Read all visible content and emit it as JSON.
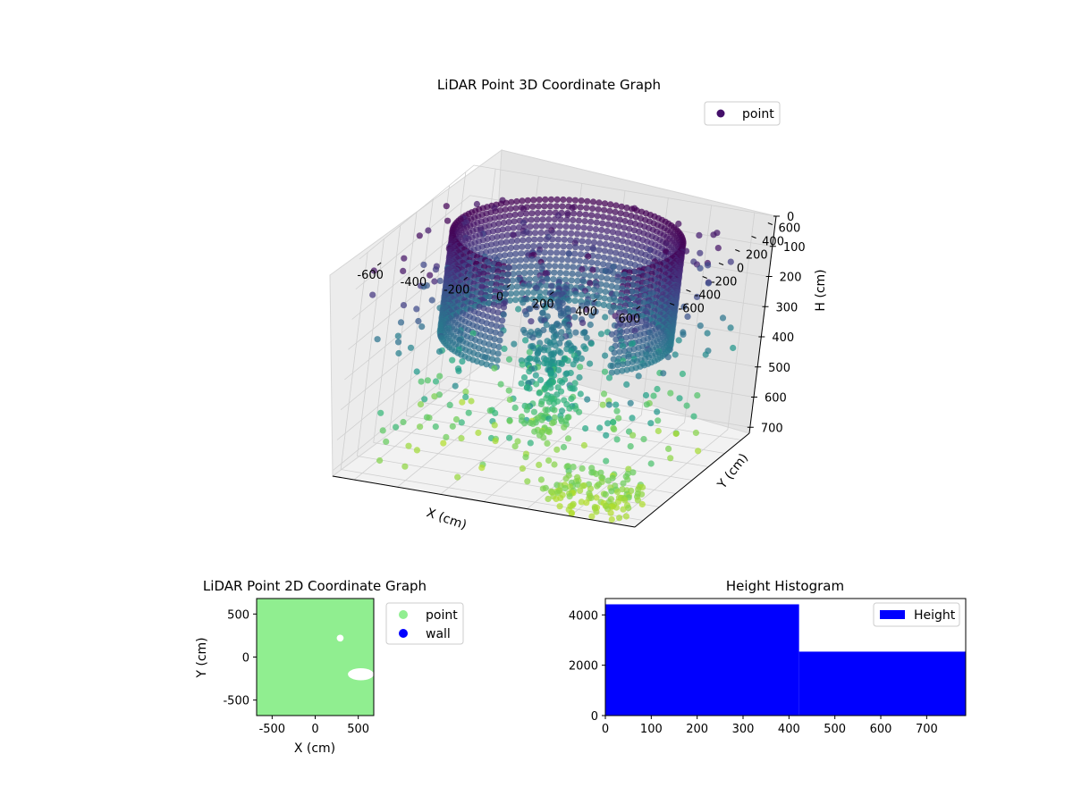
{
  "chart_data": [
    {
      "type": "scatter3d",
      "title": "LiDAR Point 3D Coordinate Graph",
      "xlabel": "X (cm)",
      "ylabel": "Y (cm)",
      "zlabel": "H (cm)",
      "x_ticks": [
        "-600",
        "-400",
        "-200",
        "0",
        "200",
        "400",
        "600"
      ],
      "y_ticks": [
        "-600",
        "-400",
        "-200",
        "0",
        "200",
        "400",
        "600"
      ],
      "z_ticks": [
        "0",
        "100",
        "200",
        "300",
        "400",
        "500",
        "600",
        "700"
      ],
      "xlim": [
        -700,
        700
      ],
      "ylim": [
        -700,
        700
      ],
      "zlim": [
        0,
        720
      ],
      "z_inverted": true,
      "colormap": "viridis",
      "legend": {
        "entries": [
          {
            "label": "point",
            "color": "#440f6a"
          }
        ],
        "position": "top-right"
      },
      "series": [
        {
          "name": "point",
          "points_description": "ring of points at radius ~500 cm near H 0-300, central column and scattered points down to H ~700"
        }
      ],
      "ring": {
        "radius": 500,
        "h_min": 0,
        "h_max": 330,
        "arc_start_deg": -40,
        "arc_end_deg": 260
      },
      "grid": true
    },
    {
      "type": "scatter",
      "title": "LiDAR Point 2D Coordinate Graph",
      "xlabel": "X (cm)",
      "ylabel": "Y (cm)",
      "x_ticks": [
        "-500",
        "0",
        "500"
      ],
      "y_ticks": [
        "-500",
        "0",
        "500"
      ],
      "xlim": [
        -680,
        680
      ],
      "ylim": [
        -680,
        680
      ],
      "legend": {
        "entries": [
          {
            "label": "point",
            "color": "#90ee90"
          },
          {
            "label": "wall",
            "color": "#0000ff"
          }
        ],
        "position": "outside-right"
      },
      "fill_color": "#90ee90",
      "gaps": [
        {
          "x": [
            250,
            330
          ],
          "y": [
            180,
            260
          ]
        },
        {
          "x": [
            380,
            680
          ],
          "y": [
            -270,
            -130
          ]
        }
      ]
    },
    {
      "type": "histogram",
      "title": "Height Histogram",
      "x_ticks": [
        "0",
        "100",
        "200",
        "300",
        "400",
        "500",
        "600",
        "700"
      ],
      "y_ticks": [
        "0",
        "2000",
        "4000"
      ],
      "xlim": [
        0,
        785
      ],
      "ylim": [
        0,
        4650
      ],
      "bins": [
        {
          "x0": 0,
          "x1": 422,
          "count": 4420
        },
        {
          "x0": 422,
          "x1": 785,
          "count": 2540
        }
      ],
      "color": "#0000ff",
      "legend": {
        "entries": [
          {
            "label": "Height",
            "color": "#0000ff"
          }
        ],
        "position": "top-right"
      }
    }
  ]
}
